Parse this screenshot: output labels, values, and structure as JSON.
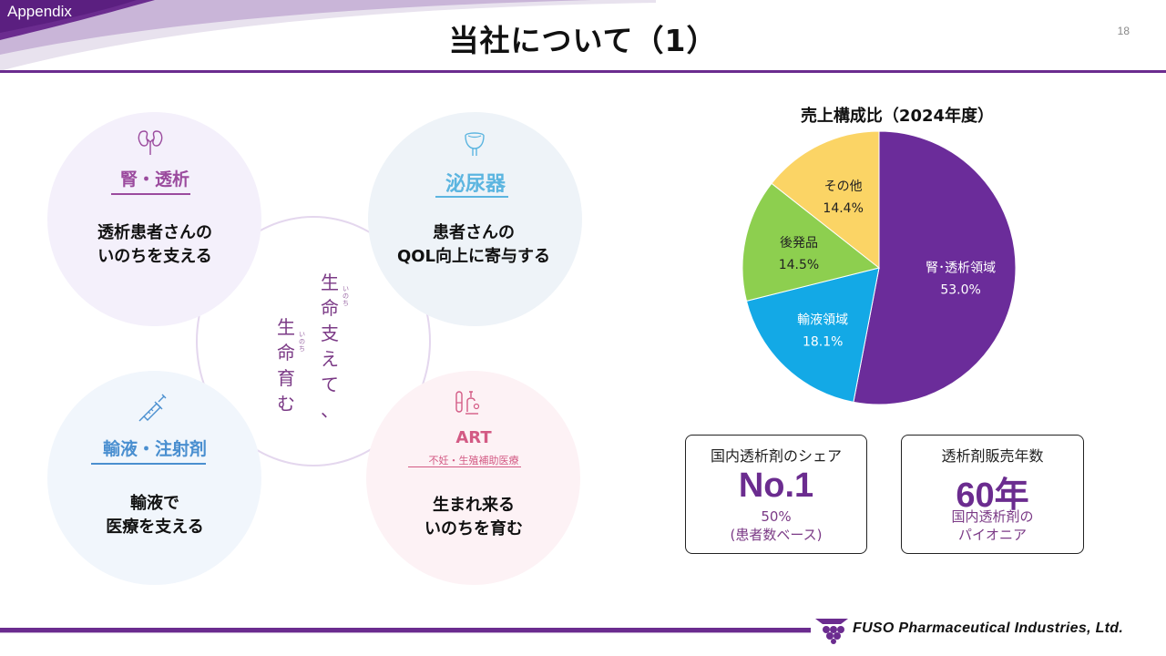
{
  "section_tag": "Appendix",
  "title": "当社について（1）",
  "page_number": "18",
  "colors": {
    "brand_purple": "#6b2c8f",
    "kidney": "#9b4b9e",
    "urology": "#5cb5e0",
    "infusion": "#4a8fd0",
    "art": "#d35a84"
  },
  "fields": [
    {
      "icon": "kidney-icon",
      "category": "腎・透析",
      "description": [
        "透析患者さんの",
        "いのちを支える"
      ]
    },
    {
      "icon": "bladder-icon",
      "category": "泌尿器",
      "description": [
        "患者さんの",
        "QOL向上に寄与する"
      ]
    },
    {
      "icon": "syringe-icon",
      "category": "輸液・注射剤",
      "description": [
        "輸液で",
        "医療を支える"
      ]
    },
    {
      "icon": "test-tube-icon",
      "category": "ART",
      "subcategory": "不妊・生殖補助医療",
      "description": [
        "生まれ来る",
        "いのちを育む"
      ]
    }
  ],
  "center_message": {
    "col1": [
      "生",
      "命",
      "支",
      "え",
      "て",
      "、"
    ],
    "col2": [
      "生",
      "命",
      "育",
      "む"
    ],
    "ruby": "いのち"
  },
  "chart_data": {
    "type": "pie",
    "title": "売上構成比（2024年度）",
    "slices": [
      {
        "label": "腎･透析領域",
        "value": 53.0,
        "value_label": "53.0%",
        "color": "#6b2c9a"
      },
      {
        "label": "輸液領域",
        "value": 18.1,
        "value_label": "18.1%",
        "color": "#13a9e6"
      },
      {
        "label": "後発品",
        "value": 14.5,
        "value_label": "14.5%",
        "color": "#8dcf4f"
      },
      {
        "label": "その他",
        "value": 14.4,
        "value_label": "14.4%",
        "color": "#fbd465"
      }
    ]
  },
  "stats": [
    {
      "title": "国内透析剤のシェア",
      "big": "No.1",
      "sub": [
        "50%",
        "(患者数ベース)"
      ]
    },
    {
      "title": "透析剤販売年数",
      "big": "60年",
      "sub": [
        "国内透析剤の",
        "パイオニア"
      ]
    }
  ],
  "company_name": "FUSO Pharmaceutical Industries, Ltd."
}
